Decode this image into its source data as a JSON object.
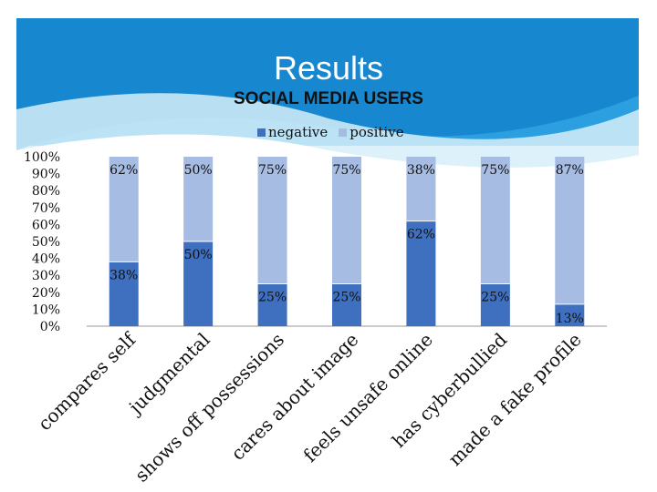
{
  "slide": {
    "title": "Results"
  },
  "colors": {
    "negative": "#3F6FBF",
    "positive": "#A6BCE3",
    "background_blue": "#1E96DC",
    "background_light": "#D3ECF7"
  },
  "chart_data": {
    "type": "bar",
    "stacked": true,
    "percent_stacked": true,
    "title": "SOCIAL MEDIA USERS",
    "legend_position": "top",
    "categories": [
      "compares self",
      "judgmental",
      "shows off possessions",
      "cares about image",
      "feels unsafe online",
      "has cyberbullied",
      "made a fake profile"
    ],
    "series": [
      {
        "name": "negative",
        "values": [
          38,
          50,
          25,
          25,
          62,
          25,
          13
        ]
      },
      {
        "name": "positive",
        "values": [
          62,
          50,
          75,
          75,
          38,
          75,
          87
        ]
      }
    ],
    "data_labels": {
      "negative": [
        "38%",
        "50%",
        "25%",
        "25%",
        "62%",
        "25%",
        "13%"
      ],
      "positive": [
        "62%",
        "50%",
        "75%",
        "75%",
        "38%",
        "75%",
        "87%"
      ]
    },
    "y_ticks": [
      "0%",
      "10%",
      "20%",
      "30%",
      "40%",
      "50%",
      "60%",
      "70%",
      "80%",
      "90%",
      "100%"
    ],
    "ylim": [
      0,
      100
    ],
    "grid": false
  }
}
